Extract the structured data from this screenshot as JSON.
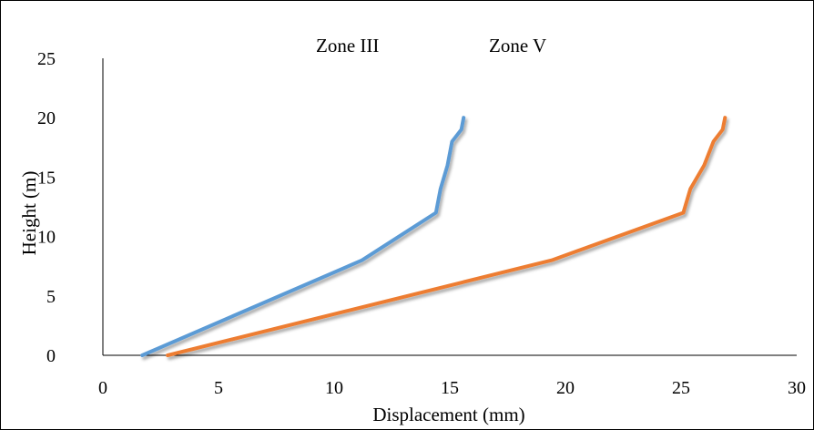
{
  "chart_data": {
    "type": "line",
    "title": "",
    "xlabel": "Displacement (mm)",
    "ylabel": "Height (m)",
    "xlim": [
      0,
      30
    ],
    "ylim": [
      0,
      25
    ],
    "xticks": [
      0,
      5,
      10,
      15,
      20,
      25,
      30
    ],
    "yticks": [
      0,
      5,
      10,
      15,
      20,
      25
    ],
    "grid": false,
    "legend": "top-center",
    "series": [
      {
        "name": "Zone III",
        "color": "#5B9BD5",
        "x": [
          1.7,
          11.2,
          14.4,
          14.6,
          14.9,
          15.1,
          15.5,
          15.6
        ],
        "y": [
          0,
          8,
          12,
          14,
          16,
          18,
          19,
          20
        ]
      },
      {
        "name": "Zone V",
        "color": "#ED7D31",
        "x": [
          2.8,
          19.4,
          25.1,
          25.4,
          26.0,
          26.4,
          26.8,
          26.9
        ],
        "y": [
          0,
          8,
          12,
          14,
          16,
          18,
          19,
          20
        ]
      }
    ]
  }
}
